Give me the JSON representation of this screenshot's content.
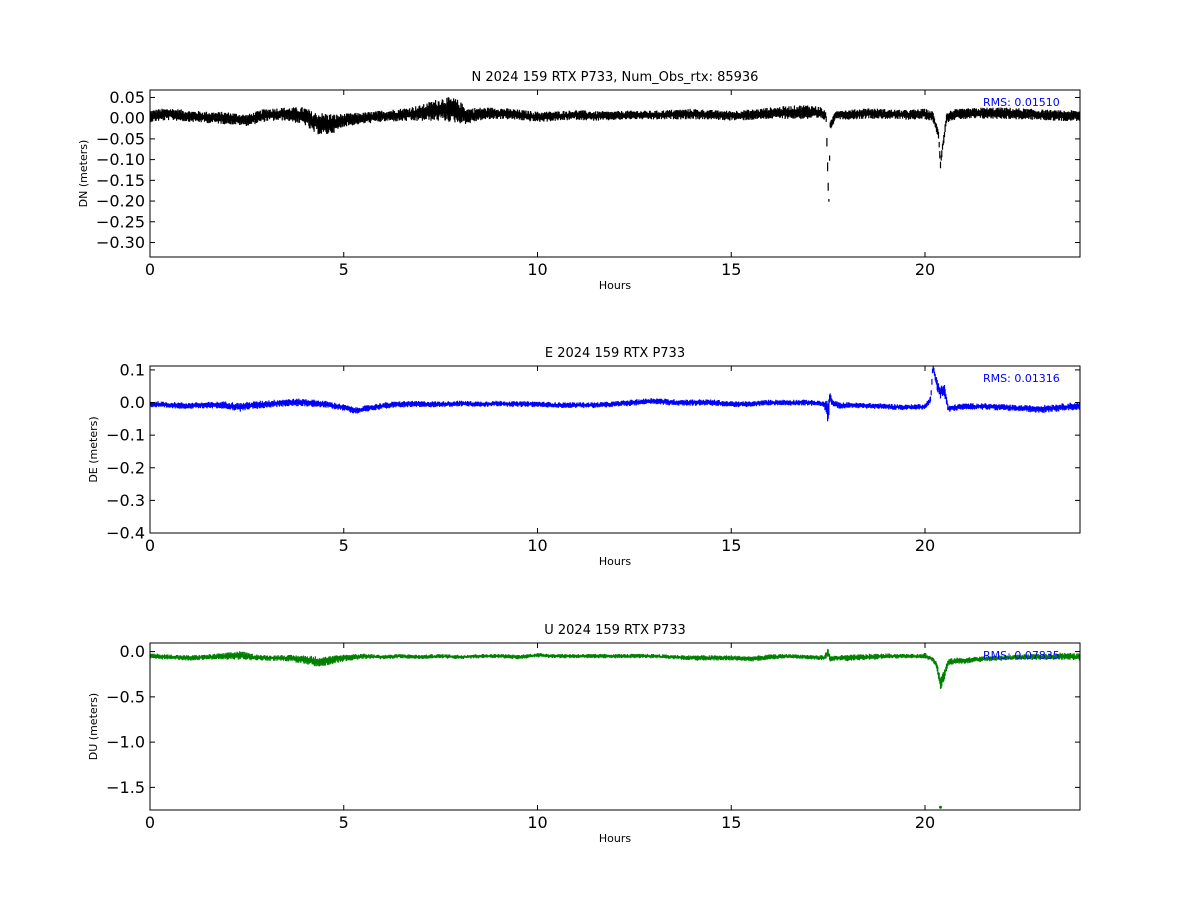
{
  "chart_data": [
    {
      "type": "line",
      "title": "N 2024 159 RTX  P733, Num_Obs_rtx: 85936",
      "xlabel": "Hours",
      "ylabel": "DN (meters)",
      "xlim": [
        0,
        24
      ],
      "ylim": [
        -0.335,
        0.068
      ],
      "xticks": [
        0,
        5,
        10,
        15,
        20
      ],
      "xtick_labels": [
        "0",
        "5",
        "10",
        "15",
        "20"
      ],
      "yticks": [
        0.05,
        0.0,
        -0.05,
        -0.1,
        -0.15,
        -0.2,
        -0.25,
        -0.3
      ],
      "ytick_labels": [
        "0.05",
        "0.00",
        "−0.05",
        "−0.10",
        "−0.15",
        "−0.20",
        "−0.25",
        "−0.30"
      ],
      "annotation": "RMS:  0.01510",
      "annotation_color": "#0000ff",
      "color": "#000000",
      "series": [
        {
          "x": [
            0,
            0.5,
            1,
            1.5,
            2,
            2.5,
            3,
            3.5,
            4,
            4.2,
            4.5,
            4.8,
            5,
            5.5,
            6,
            6.5,
            7,
            7.3,
            7.6,
            7.9,
            8.2,
            8.5,
            9,
            9.5,
            10,
            10.5,
            11,
            11.5,
            12,
            12.5,
            13,
            13.5,
            14,
            14.5,
            15,
            15.5,
            16,
            16.5,
            17,
            17.3,
            17.45,
            17.5,
            17.52,
            17.55,
            17.7,
            18,
            18.5,
            19,
            19.5,
            20,
            20.2,
            20.35,
            20.4,
            20.45,
            20.5,
            20.55,
            20.7,
            21,
            21.5,
            22,
            22.5,
            23,
            23.5,
            24
          ],
          "y": [
            0.005,
            0.01,
            0.005,
            0.002,
            0.0,
            -0.005,
            0.008,
            0.01,
            0.005,
            -0.01,
            -0.015,
            -0.012,
            -0.005,
            0.0,
            0.005,
            0.008,
            0.012,
            0.018,
            0.022,
            0.018,
            0.005,
            0.01,
            0.012,
            0.008,
            0.003,
            0.005,
            0.008,
            0.005,
            0.006,
            0.008,
            0.007,
            0.009,
            0.01,
            0.008,
            0.006,
            0.008,
            0.012,
            0.014,
            0.015,
            0.012,
            0.005,
            -0.16,
            -0.2,
            -0.02,
            0.01,
            0.008,
            0.012,
            0.01,
            0.008,
            0.01,
            0.005,
            -0.04,
            -0.11,
            -0.07,
            -0.04,
            0.0,
            0.008,
            0.01,
            0.012,
            0.012,
            0.01,
            0.008,
            0.006,
            0.006
          ],
          "spread": [
            0.015,
            0.015,
            0.014,
            0.014,
            0.015,
            0.014,
            0.016,
            0.016,
            0.022,
            0.026,
            0.028,
            0.022,
            0.016,
            0.014,
            0.014,
            0.016,
            0.02,
            0.025,
            0.03,
            0.03,
            0.02,
            0.016,
            0.014,
            0.013,
            0.013,
            0.012,
            0.012,
            0.012,
            0.011,
            0.011,
            0.011,
            0.012,
            0.013,
            0.012,
            0.012,
            0.013,
            0.014,
            0.016,
            0.018,
            0.016,
            0.01,
            0.02,
            0.005,
            0.01,
            0.012,
            0.012,
            0.013,
            0.012,
            0.012,
            0.013,
            0.012,
            0.01,
            0.012,
            0.012,
            0.012,
            0.012,
            0.013,
            0.013,
            0.014,
            0.014,
            0.014,
            0.013,
            0.013,
            0.013
          ]
        }
      ]
    },
    {
      "type": "line",
      "title": "E 2024 159 RTX  P733",
      "xlabel": "Hours",
      "ylabel": "DE (meters)",
      "xlim": [
        0,
        24
      ],
      "ylim": [
        -0.4,
        0.112
      ],
      "xticks": [
        0,
        5,
        10,
        15,
        20
      ],
      "xtick_labels": [
        "0",
        "5",
        "10",
        "15",
        "20"
      ],
      "yticks": [
        0.1,
        0.0,
        -0.1,
        -0.2,
        -0.3,
        -0.4
      ],
      "ytick_labels": [
        "0.1",
        "0.0",
        "−0.1",
        "−0.2",
        "−0.3",
        "−0.4"
      ],
      "annotation": "RMS:  0.01316",
      "annotation_color": "#0000ff",
      "color": "#0000ff",
      "series": [
        {
          "x": [
            0,
            0.5,
            1,
            1.5,
            2,
            2.3,
            2.5,
            3,
            3.5,
            4,
            4.5,
            5,
            5.3,
            5.5,
            6,
            6.5,
            7,
            7.5,
            8,
            8.5,
            9,
            9.5,
            10,
            10.5,
            11,
            11.5,
            12,
            12.5,
            13,
            13.5,
            14,
            14.5,
            15,
            15.5,
            16,
            16.5,
            17,
            17.4,
            17.5,
            17.55,
            17.6,
            17.8,
            18,
            18.5,
            19,
            19.5,
            20,
            20.15,
            20.2,
            20.3,
            20.4,
            20.5,
            20.6,
            20.8,
            21,
            21.5,
            22,
            22.5,
            23,
            23.5,
            24
          ],
          "y": [
            -0.005,
            -0.008,
            -0.01,
            -0.008,
            -0.008,
            -0.015,
            -0.01,
            -0.005,
            0.0,
            0.0,
            -0.005,
            -0.015,
            -0.025,
            -0.02,
            -0.01,
            -0.005,
            -0.005,
            -0.005,
            -0.003,
            -0.005,
            -0.003,
            -0.005,
            -0.005,
            -0.008,
            -0.008,
            -0.008,
            -0.005,
            0.0,
            0.005,
            0.0,
            0.0,
            0.0,
            -0.005,
            -0.005,
            0.0,
            0.0,
            0.0,
            -0.005,
            -0.03,
            0.02,
            0.0,
            -0.01,
            -0.008,
            -0.01,
            -0.012,
            -0.015,
            -0.012,
            0.01,
            0.11,
            0.06,
            0.03,
            0.04,
            -0.02,
            -0.015,
            -0.012,
            -0.012,
            -0.015,
            -0.018,
            -0.02,
            -0.015,
            -0.01
          ],
          "spread": [
            0.01,
            0.01,
            0.01,
            0.01,
            0.012,
            0.014,
            0.012,
            0.012,
            0.012,
            0.012,
            0.011,
            0.01,
            0.01,
            0.01,
            0.01,
            0.01,
            0.01,
            0.009,
            0.009,
            0.009,
            0.009,
            0.009,
            0.009,
            0.009,
            0.009,
            0.009,
            0.009,
            0.01,
            0.01,
            0.01,
            0.01,
            0.01,
            0.009,
            0.009,
            0.009,
            0.009,
            0.009,
            0.009,
            0.04,
            0.015,
            0.01,
            0.01,
            0.009,
            0.009,
            0.009,
            0.009,
            0.009,
            0.01,
            0.01,
            0.02,
            0.02,
            0.02,
            0.01,
            0.01,
            0.01,
            0.01,
            0.01,
            0.01,
            0.012,
            0.012,
            0.012
          ]
        }
      ]
    },
    {
      "type": "line",
      "title": "U 2024 159 RTX  P733",
      "xlabel": "Hours",
      "ylabel": "DU (meters)",
      "xlim": [
        0,
        24
      ],
      "ylim": [
        -1.75,
        0.095
      ],
      "xticks": [
        0,
        5,
        10,
        15,
        20
      ],
      "xtick_labels": [
        "0",
        "5",
        "10",
        "15",
        "20"
      ],
      "yticks": [
        0.0,
        -0.5,
        -1.0,
        -1.5
      ],
      "ytick_labels": [
        "0.0",
        "−0.5",
        "−1.0",
        "−1.5"
      ],
      "annotation": "RMS:  0.07835",
      "annotation_color": "#0000ff",
      "color": "#008000",
      "series": [
        {
          "x": [
            0,
            0.5,
            1,
            1.5,
            2,
            2.3,
            2.6,
            3,
            3.5,
            4,
            4.3,
            4.6,
            5,
            5.5,
            6,
            6.5,
            7,
            7.5,
            8,
            8.5,
            9,
            9.5,
            10,
            10.5,
            11,
            11.5,
            12,
            12.5,
            13,
            13.5,
            14,
            14.5,
            15,
            15.5,
            16,
            16.5,
            17,
            17.4,
            17.5,
            17.55,
            17.7,
            18,
            18.5,
            19,
            19.5,
            20,
            20.2,
            20.3,
            20.4,
            20.5,
            20.6,
            20.8,
            21,
            21.5,
            22,
            22.5,
            23,
            23.5,
            24
          ],
          "y": [
            -0.05,
            -0.06,
            -0.07,
            -0.06,
            -0.05,
            -0.04,
            -0.06,
            -0.07,
            -0.07,
            -0.09,
            -0.11,
            -0.1,
            -0.07,
            -0.05,
            -0.06,
            -0.05,
            -0.06,
            -0.05,
            -0.06,
            -0.05,
            -0.05,
            -0.06,
            -0.04,
            -0.05,
            -0.05,
            -0.05,
            -0.05,
            -0.05,
            -0.05,
            -0.06,
            -0.07,
            -0.07,
            -0.07,
            -0.08,
            -0.06,
            -0.05,
            -0.06,
            -0.07,
            0.0,
            -0.08,
            -0.07,
            -0.07,
            -0.06,
            -0.05,
            -0.05,
            -0.05,
            -0.08,
            -0.15,
            -0.35,
            -0.25,
            -0.12,
            -0.1,
            -0.1,
            -0.08,
            -0.07,
            -0.06,
            -0.06,
            -0.05,
            -0.06
          ],
          "spread": [
            0.03,
            0.03,
            0.03,
            0.03,
            0.04,
            0.05,
            0.04,
            0.03,
            0.035,
            0.05,
            0.06,
            0.05,
            0.04,
            0.03,
            0.025,
            0.025,
            0.025,
            0.025,
            0.025,
            0.025,
            0.025,
            0.025,
            0.025,
            0.025,
            0.025,
            0.025,
            0.025,
            0.025,
            0.025,
            0.025,
            0.03,
            0.03,
            0.03,
            0.03,
            0.03,
            0.025,
            0.025,
            0.03,
            0.05,
            0.03,
            0.03,
            0.035,
            0.035,
            0.03,
            0.025,
            0.025,
            0.03,
            0.04,
            0.08,
            0.06,
            0.04,
            0.035,
            0.035,
            0.03,
            0.03,
            0.03,
            0.035,
            0.04,
            0.04
          ],
          "outliers": [
            {
              "x": 20.0,
              "y": -0.03
            },
            {
              "x": 20.25,
              "y": -0.12
            },
            {
              "x": 20.4,
              "y": -1.72
            }
          ]
        }
      ]
    }
  ]
}
